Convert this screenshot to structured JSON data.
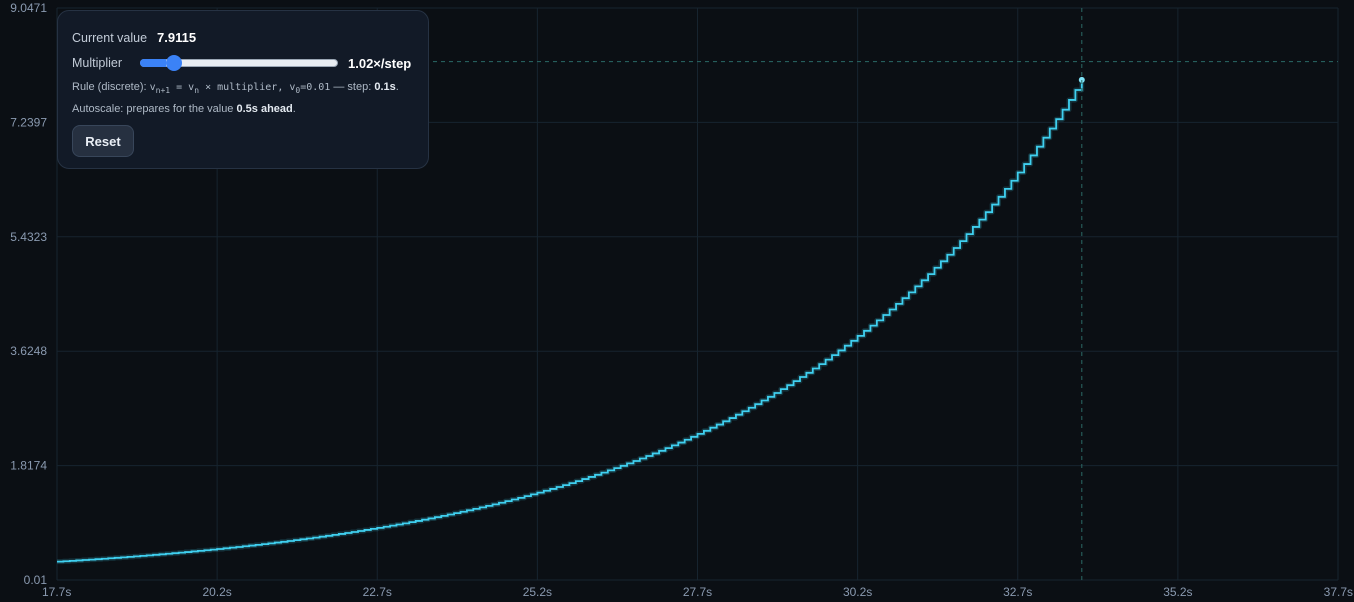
{
  "chart_data": {
    "type": "line",
    "style": "step",
    "x_unit": "s",
    "x_ticks": [
      "17.7s",
      "20.2s",
      "22.7s",
      "25.2s",
      "27.7s",
      "30.2s",
      "32.7s",
      "35.2s",
      "37.7s"
    ],
    "y_ticks": [
      "0.01",
      "1.8174",
      "3.6248",
      "5.4323",
      "7.2397",
      "9.0471"
    ],
    "xlim": [
      17.7,
      37.7
    ],
    "ylim": [
      0.01,
      9.0471
    ],
    "grid": true,
    "series": [
      {
        "start_x": 17.7,
        "start_y": 0.3,
        "step_x": 0.1,
        "multiplier": 1.02,
        "end_x": 33.7,
        "end_y": 7.9115
      }
    ],
    "crosshair": {
      "x": 33.7,
      "y": 8.2
    },
    "colors": {
      "line": "#3fd0f0",
      "grid": "#17242f",
      "crosshair": "#2b6a66",
      "background": "#0b0f14"
    }
  },
  "controls": {
    "current_label": "Current value",
    "current_value": "7.9115",
    "multiplier_label": "Multiplier",
    "multiplier_value": "1.02×/step",
    "multiplier_slider_fraction": 0.13,
    "rule_prefix": "Rule (discrete): ",
    "rule_v1": "v",
    "rule_n1": "n+1",
    "rule_eq": " = v",
    "rule_n2": "n",
    "rule_mult": " × multiplier, v",
    "rule_zero": "0",
    "rule_init": "=0.01",
    "rule_step_label": " — step: ",
    "rule_step_value": "0.1s",
    "rule_period": ".",
    "autoscale_prefix": "Autoscale: prepares for the value ",
    "autoscale_value": "0.5s ahead",
    "autoscale_period": ".",
    "reset_label": "Reset"
  }
}
